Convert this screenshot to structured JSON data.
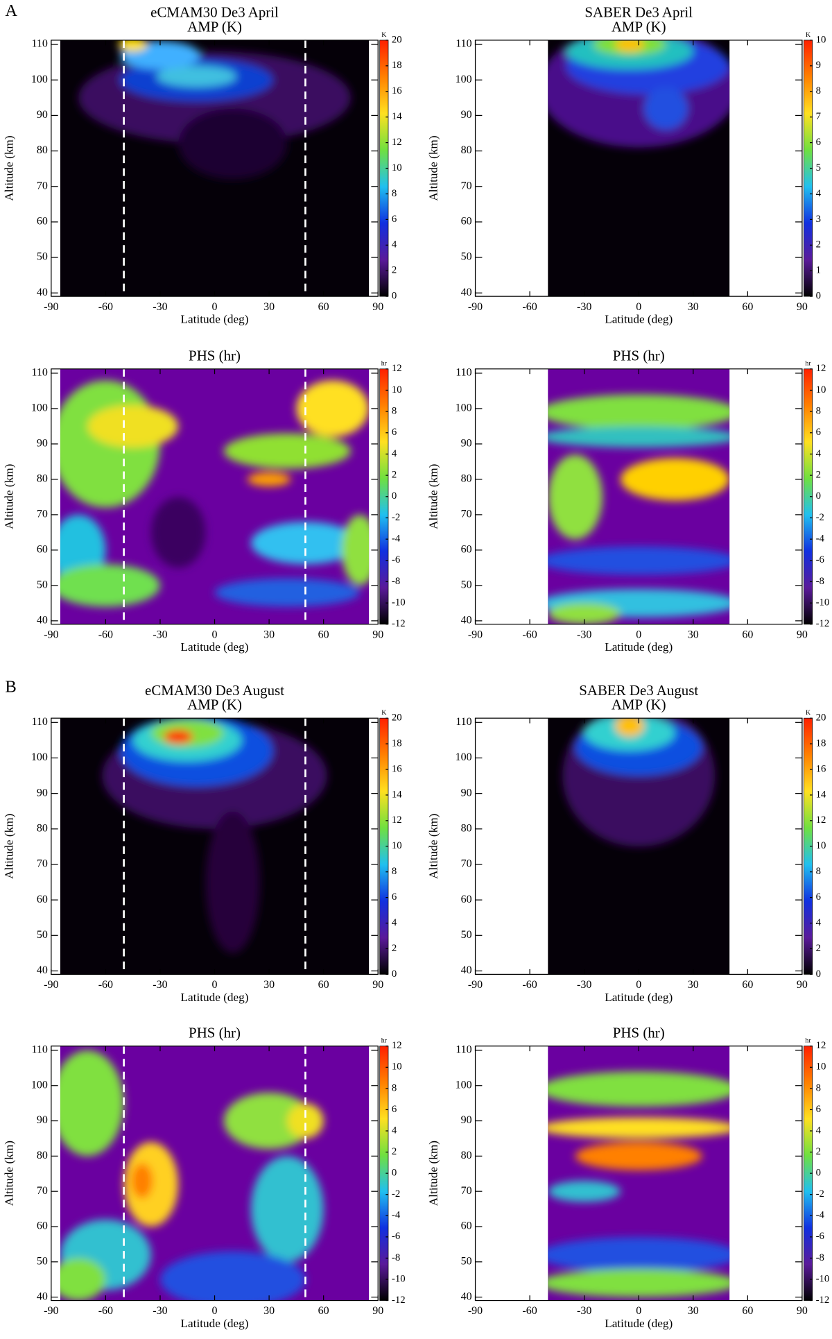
{
  "figure": {
    "labels": [
      "A",
      "B"
    ]
  },
  "chart_data": [
    {
      "type": "contour",
      "title": "eCMAM30  De3  April",
      "subtitle": "AMP (K)",
      "xlabel": "Latitude (deg)",
      "ylabel": "Altitude (km)",
      "xlim": [
        -90,
        90
      ],
      "xticks": [
        -90,
        -60,
        -30,
        0,
        30,
        60,
        90
      ],
      "ylim": [
        40,
        110
      ],
      "yticks": [
        40,
        50,
        60,
        70,
        80,
        90,
        100,
        110
      ],
      "lat_range": [
        -85,
        85
      ],
      "dashed_lines": [
        -50,
        50
      ],
      "colorbar": {
        "label": "K",
        "lim": [
          0,
          20
        ],
        "ticks": [
          0,
          2,
          4,
          6,
          8,
          10,
          12,
          14,
          16,
          18,
          20
        ],
        "colors": [
          "#000000",
          "#5a1a9a",
          "#1030e0",
          "#20c0f0",
          "#70e040",
          "#ffe020",
          "#ff8000",
          "#ff2000"
        ]
      }
    },
    {
      "type": "contour",
      "title": "SABER  De3  April",
      "subtitle": "AMP (K)",
      "xlabel": "Latitude (deg)",
      "ylabel": "Altitude (km)",
      "xlim": [
        -90,
        90
      ],
      "xticks": [
        -90,
        -60,
        -30,
        0,
        30,
        60,
        90
      ],
      "ylim": [
        40,
        110
      ],
      "yticks": [
        40,
        50,
        60,
        70,
        80,
        90,
        100,
        110
      ],
      "lat_range": [
        -50,
        50
      ],
      "dashed_lines": [],
      "colorbar": {
        "label": "K",
        "lim": [
          0,
          10
        ],
        "ticks": [
          0,
          1,
          2,
          3,
          4,
          5,
          6,
          7,
          8,
          9,
          10
        ],
        "colors": [
          "#000000",
          "#5a1a9a",
          "#1030e0",
          "#20c0f0",
          "#70e040",
          "#ffe020",
          "#ff8000",
          "#ff2000"
        ]
      }
    },
    {
      "type": "contour",
      "title": "PHS (hr)",
      "xlabel": "Latitude (deg)",
      "ylabel": "Altitude (km)",
      "xlim": [
        -90,
        90
      ],
      "xticks": [
        -90,
        -60,
        -30,
        0,
        30,
        60,
        90
      ],
      "ylim": [
        40,
        110
      ],
      "yticks": [
        40,
        50,
        60,
        70,
        80,
        90,
        100,
        110
      ],
      "lat_range": [
        -85,
        85
      ],
      "dashed_lines": [
        -50,
        50
      ],
      "colorbar": {
        "label": "hr",
        "lim": [
          -12,
          12
        ],
        "ticks": [
          -12,
          -10,
          -8,
          -6,
          -4,
          -2,
          0,
          2,
          4,
          6,
          8,
          10,
          12
        ],
        "colors": [
          "#000000",
          "#5a1a9a",
          "#1030e0",
          "#20c0f0",
          "#70e040",
          "#ffe020",
          "#ff8000",
          "#ff2000"
        ]
      }
    },
    {
      "type": "contour",
      "title": "PHS (hr)",
      "xlabel": "Latitude (deg)",
      "ylabel": "Altitude (km)",
      "xlim": [
        -90,
        90
      ],
      "xticks": [
        -90,
        -60,
        -30,
        0,
        30,
        60,
        90
      ],
      "ylim": [
        40,
        110
      ],
      "yticks": [
        40,
        50,
        60,
        70,
        80,
        90,
        100,
        110
      ],
      "lat_range": [
        -50,
        50
      ],
      "dashed_lines": [],
      "colorbar": {
        "label": "hr",
        "lim": [
          -12,
          12
        ],
        "ticks": [
          -12,
          -10,
          -8,
          -6,
          -4,
          -2,
          0,
          2,
          4,
          6,
          8,
          10,
          12
        ],
        "colors": [
          "#000000",
          "#5a1a9a",
          "#1030e0",
          "#20c0f0",
          "#70e040",
          "#ffe020",
          "#ff8000",
          "#ff2000"
        ]
      }
    },
    {
      "type": "contour",
      "title": "eCMAM30  De3  August",
      "subtitle": "AMP (K)",
      "xlabel": "Latitude (deg)",
      "ylabel": "Altitude (km)",
      "xlim": [
        -90,
        90
      ],
      "xticks": [
        -90,
        -60,
        -30,
        0,
        30,
        60,
        90
      ],
      "ylim": [
        40,
        110
      ],
      "yticks": [
        40,
        50,
        60,
        70,
        80,
        90,
        100,
        110
      ],
      "lat_range": [
        -85,
        85
      ],
      "dashed_lines": [
        -50,
        50
      ],
      "colorbar": {
        "label": "K",
        "lim": [
          0,
          20
        ],
        "ticks": [
          0,
          2,
          4,
          6,
          8,
          10,
          12,
          14,
          16,
          18,
          20
        ],
        "colors": [
          "#000000",
          "#5a1a9a",
          "#1030e0",
          "#20c0f0",
          "#70e040",
          "#ffe020",
          "#ff8000",
          "#ff2000"
        ]
      }
    },
    {
      "type": "contour",
      "title": "SABER  De3  August",
      "subtitle": "AMP (K)",
      "xlabel": "Latitude (deg)",
      "ylabel": "Altitude (km)",
      "xlim": [
        -90,
        90
      ],
      "xticks": [
        -90,
        -60,
        -30,
        0,
        30,
        60,
        90
      ],
      "ylim": [
        40,
        110
      ],
      "yticks": [
        40,
        50,
        60,
        70,
        80,
        90,
        100,
        110
      ],
      "lat_range": [
        -50,
        50
      ],
      "dashed_lines": [],
      "colorbar": {
        "label": "K",
        "lim": [
          0,
          20
        ],
        "ticks": [
          0,
          2,
          4,
          6,
          8,
          10,
          12,
          14,
          16,
          18,
          20
        ],
        "colors": [
          "#000000",
          "#5a1a9a",
          "#1030e0",
          "#20c0f0",
          "#70e040",
          "#ffe020",
          "#ff8000",
          "#ff2000"
        ]
      }
    },
    {
      "type": "contour",
      "title": "PHS (hr)",
      "xlabel": "Latitude (deg)",
      "ylabel": "Altitude (km)",
      "xlim": [
        -90,
        90
      ],
      "xticks": [
        -90,
        -60,
        -30,
        0,
        30,
        60,
        90
      ],
      "ylim": [
        40,
        110
      ],
      "yticks": [
        40,
        50,
        60,
        70,
        80,
        90,
        100,
        110
      ],
      "lat_range": [
        -85,
        85
      ],
      "dashed_lines": [
        -50,
        50
      ],
      "colorbar": {
        "label": "hr",
        "lim": [
          -12,
          12
        ],
        "ticks": [
          -12,
          -10,
          -8,
          -6,
          -4,
          -2,
          0,
          2,
          4,
          6,
          8,
          10,
          12
        ],
        "colors": [
          "#000000",
          "#5a1a9a",
          "#1030e0",
          "#20c0f0",
          "#70e040",
          "#ffe020",
          "#ff8000",
          "#ff2000"
        ]
      }
    },
    {
      "type": "contour",
      "title": "PHS (hr)",
      "xlabel": "Latitude (deg)",
      "ylabel": "Altitude (km)",
      "xlim": [
        -90,
        90
      ],
      "xticks": [
        -90,
        -60,
        -30,
        0,
        30,
        60,
        90
      ],
      "ylim": [
        40,
        110
      ],
      "yticks": [
        40,
        50,
        60,
        70,
        80,
        90,
        100,
        110
      ],
      "lat_range": [
        -50,
        50
      ],
      "dashed_lines": [],
      "colorbar": {
        "label": "hr",
        "lim": [
          -12,
          12
        ],
        "ticks": [
          -12,
          -10,
          -8,
          -6,
          -4,
          -2,
          0,
          2,
          4,
          6,
          8,
          10,
          12
        ],
        "colors": [
          "#000000",
          "#5a1a9a",
          "#1030e0",
          "#20c0f0",
          "#70e040",
          "#ffe020",
          "#ff8000",
          "#ff2000"
        ]
      }
    }
  ]
}
